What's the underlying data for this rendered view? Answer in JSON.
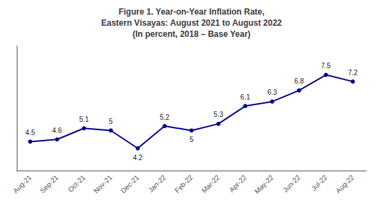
{
  "chart_data": {
    "type": "line",
    "title": "Figure 1. Year-on-Year Inflation Rate,\nEastern Visayas: August 2021 to August 2022\n(In percent, 2018 – Base Year)",
    "categories": [
      "Aug-21",
      "Sep-21",
      "Oct-21",
      "Nov-21",
      "Dec-21",
      "Jan-22",
      "Feb-22",
      "Mar-22",
      "Apr-22",
      "May-22",
      "Jun-22",
      "Jul-22",
      "Aug-22"
    ],
    "values": [
      4.5,
      4.6,
      5.1,
      5.0,
      4.2,
      5.2,
      5.0,
      5.3,
      6.1,
      6.3,
      6.8,
      7.5,
      7.2
    ],
    "color": "#00008B",
    "marker": "circle",
    "ylim": [
      3.2,
      8.8
    ],
    "grid": false,
    "data_labels": true,
    "tick_labels": "x"
  }
}
